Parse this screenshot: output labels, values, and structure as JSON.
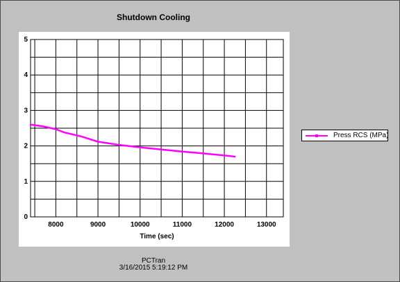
{
  "window": {
    "title": "Shutdown Cooling"
  },
  "legend": {
    "label": "Press RCS (MPa)"
  },
  "footer": {
    "app_name": "PCTran",
    "timestamp": "3/16/2015 5:19:12 PM"
  },
  "colors": {
    "series": "#ff00ff",
    "grid": "#000000",
    "window_bg": "#c0c0c0",
    "plot_bg": "#ffffff"
  },
  "chart_data": {
    "type": "line",
    "title": "Shutdown Cooling",
    "xlabel": "Time (sec)",
    "ylabel": "",
    "xlim": [
      7400,
      13400
    ],
    "ylim": [
      0,
      5
    ],
    "xticks": [
      8000,
      9000,
      10000,
      11000,
      12000,
      13000
    ],
    "yticks": [
      0,
      1,
      2,
      3,
      4,
      5
    ],
    "grid": true,
    "legend_position": "right",
    "series": [
      {
        "name": "Press RCS (MPa)",
        "color": "#ff00ff",
        "x": [
          7400,
          7700,
          8000,
          8200,
          8600,
          9000,
          9500,
          10000,
          10500,
          11000,
          11500,
          12000,
          12250
        ],
        "y": [
          2.6,
          2.55,
          2.47,
          2.38,
          2.27,
          2.12,
          2.03,
          1.96,
          1.9,
          1.84,
          1.79,
          1.73,
          1.7
        ]
      }
    ]
  }
}
